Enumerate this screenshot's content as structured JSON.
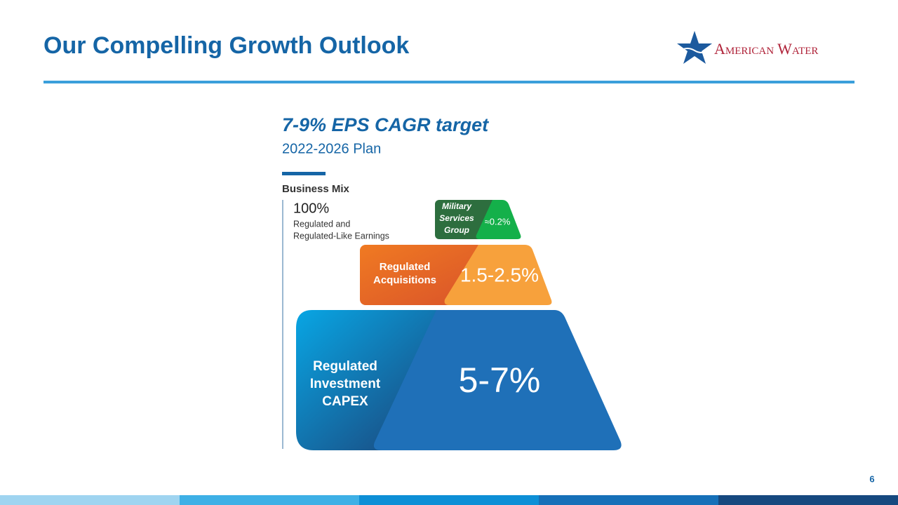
{
  "header": {
    "title": "Our Compelling Growth Outlook",
    "logo": "American Water"
  },
  "target": {
    "title": "7-9% EPS CAGR target",
    "subtitle": "2022-2026 Plan"
  },
  "business_mix": {
    "label": "Business Mix",
    "total": "100%",
    "description": [
      "Regulated and",
      "Regulated-Like Earnings"
    ]
  },
  "tiers": [
    {
      "name": [
        "Military",
        "Services",
        "Group"
      ],
      "growth": "≈0.2%"
    },
    {
      "name": [
        "Regulated",
        "Acquisitions"
      ],
      "growth": "1.5-2.5%"
    },
    {
      "name": [
        "Regulated",
        "Investment",
        "CAPEX"
      ],
      "growth": "5-7%"
    }
  ],
  "footer": {
    "page": "6"
  }
}
